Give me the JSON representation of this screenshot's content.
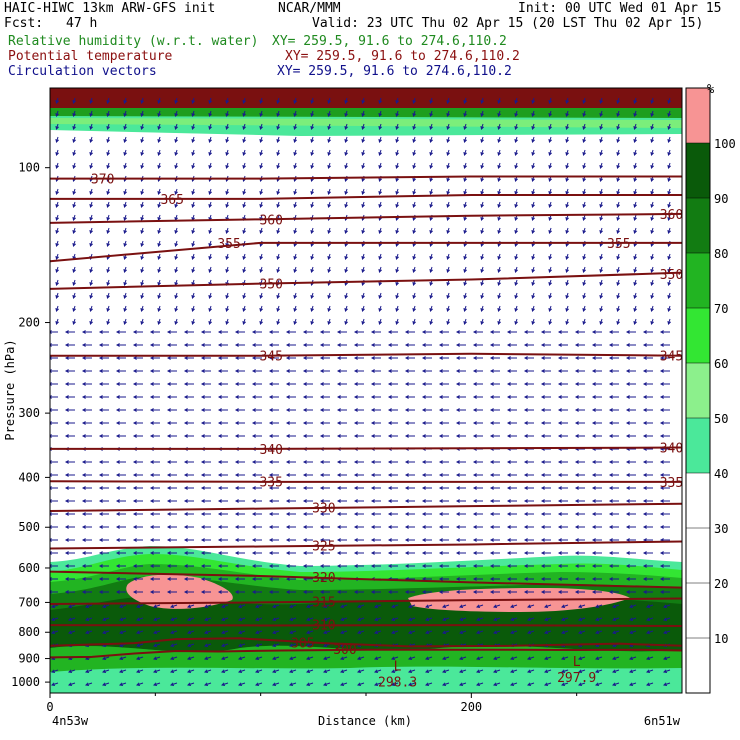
{
  "header": {
    "model": "HAIC-HIWC 13km ARW-GFS init",
    "org": "NCAR/MMM",
    "init": "Init: 00 UTC Wed 01 Apr 15",
    "fcst_label": "Fcst:",
    "fcst_value": "47 h",
    "valid": "Valid: 23 UTC Thu 02 Apr 15 (20 LST Thu 02 Apr 15)",
    "fields": [
      {
        "name": "Relative humidity (w.r.t. water)",
        "xy": "XY= 259.5, 91.6 to 274.6,110.2",
        "color": "#1f8a1f"
      },
      {
        "name": "Potential temperature",
        "xy": "XY= 259.5, 91.6 to 274.6,110.2",
        "color": "#8b1010"
      },
      {
        "name": "Circulation vectors",
        "xy": "XY= 259.5, 91.6 to 274.6,110.2",
        "color": "#10108b"
      }
    ]
  },
  "chart_data": {
    "type": "heatmap",
    "description_free": true,
    "xlabel": "Distance (km)",
    "ylabel": "Pressure (hPa)",
    "xlim": [
      0,
      300
    ],
    "ylim": [
      1050,
      70
    ],
    "x_ticks": [
      "0",
      "200"
    ],
    "x_tick_values": [
      0,
      200
    ],
    "x_end_labels": [
      "4n53w",
      "6n51w"
    ],
    "y_ticks": [
      "100",
      "200",
      "300",
      "400",
      "500",
      "600",
      "700",
      "800",
      "900",
      "1000"
    ],
    "y_tick_values": [
      100,
      200,
      300,
      400,
      500,
      600,
      700,
      800,
      900,
      1000
    ],
    "y_scale": "log",
    "colorbar": {
      "unit": "%",
      "labels": [
        "10",
        "20",
        "30",
        "40",
        "50",
        "60",
        "70",
        "80",
        "90",
        "100"
      ],
      "levels": [
        10,
        20,
        30,
        40,
        50,
        60,
        70,
        80,
        90,
        100
      ],
      "colors": [
        "#ffffff",
        "#ffffff",
        "#ffffff",
        "#ffffff",
        "#4be89a",
        "#8cf08c",
        "#33e633",
        "#22b422",
        "#127c12",
        "#0a5a0a",
        "#f79494"
      ]
    },
    "theta_contours": [
      {
        "label": "300",
        "x": [
          0,
          20,
          40,
          60,
          80,
          110,
          150,
          200,
          250,
          280,
          300
        ],
        "p": [
          895,
          893,
          880,
          870,
          872,
          868,
          865,
          865,
          866,
          865,
          868
        ],
        "labels_at": [
          [
            140,
            863
          ]
        ]
      },
      {
        "label": "305",
        "x": [
          0,
          40,
          60,
          90,
          130,
          170,
          220,
          270,
          300
        ],
        "p": [
          850,
          840,
          825,
          822,
          840,
          852,
          850,
          842,
          850
        ],
        "labels_at": [
          [
            120,
            837
          ]
        ]
      },
      {
        "label": "310",
        "x": [
          0,
          100,
          200,
          300
        ],
        "p": [
          775,
          776,
          775,
          778
        ],
        "labels_at": [
          [
            130,
            773
          ]
        ]
      },
      {
        "label": "315",
        "x": [
          0,
          100,
          200,
          300
        ],
        "p": [
          705,
          700,
          693,
          688
        ],
        "labels_at": [
          [
            130,
            697
          ]
        ]
      },
      {
        "label": "320",
        "x": [
          0,
          100,
          200,
          300
        ],
        "p": [
          610,
          622,
          640,
          655
        ],
        "labels_at": [
          [
            130,
            625
          ]
        ]
      },
      {
        "label": "325",
        "x": [
          0,
          100,
          200,
          300
        ],
        "p": [
          550,
          545,
          540,
          533
        ],
        "labels_at": [
          [
            130,
            543
          ]
        ]
      },
      {
        "label": "330",
        "x": [
          0,
          100,
          200,
          300
        ],
        "p": [
          465,
          460,
          455,
          450
        ],
        "labels_at": [
          [
            130,
            458
          ]
        ]
      },
      {
        "label": "335",
        "x": [
          0,
          100,
          200,
          300
        ],
        "p": [
          407,
          408,
          408,
          408
        ],
        "labels_at": [
          [
            105,
            407
          ],
          [
            295,
            408
          ]
        ]
      },
      {
        "label": "340",
        "x": [
          0,
          100,
          200,
          300
        ],
        "p": [
          352,
          352,
          351,
          350
        ],
        "labels_at": [
          [
            105,
            352
          ],
          [
            295,
            350
          ]
        ]
      },
      {
        "label": "345",
        "x": [
          0,
          100,
          200,
          300
        ],
        "p": [
          232,
          232,
          230,
          232
        ],
        "labels_at": [
          [
            105,
            232
          ],
          [
            295,
            232
          ]
        ]
      },
      {
        "label": "350",
        "x": [
          0,
          100,
          200,
          300
        ],
        "p": [
          172,
          168,
          165,
          160
        ],
        "labels_at": [
          [
            105,
            168
          ],
          [
            295,
            161
          ]
        ]
      },
      {
        "label": "355",
        "x": [
          0,
          100,
          200,
          300
        ],
        "p": [
          152,
          140,
          140,
          140
        ],
        "labels_at": [
          [
            85,
            140
          ],
          [
            270,
            140
          ]
        ]
      },
      {
        "label": "360",
        "x": [
          0,
          100,
          200,
          300
        ],
        "p": [
          128,
          126,
          124,
          123
        ],
        "labels_at": [
          [
            105,
            126
          ],
          [
            295,
            123
          ]
        ]
      },
      {
        "label": "365",
        "x": [
          0,
          100,
          200,
          300
        ],
        "p": [
          115,
          115,
          113,
          113
        ],
        "labels_at": [
          [
            58,
            115
          ]
        ]
      },
      {
        "label": "370",
        "x": [
          0,
          100,
          200,
          300
        ],
        "p": [
          105,
          105,
          104,
          104
        ],
        "labels_at": [
          [
            25,
            105
          ]
        ]
      }
    ],
    "minima": [
      {
        "mark": "L",
        "value": "298.3",
        "x": 165,
        "p": 985
      },
      {
        "mark": "L",
        "value": "297.9",
        "x": 250,
        "p": 965
      }
    ]
  }
}
